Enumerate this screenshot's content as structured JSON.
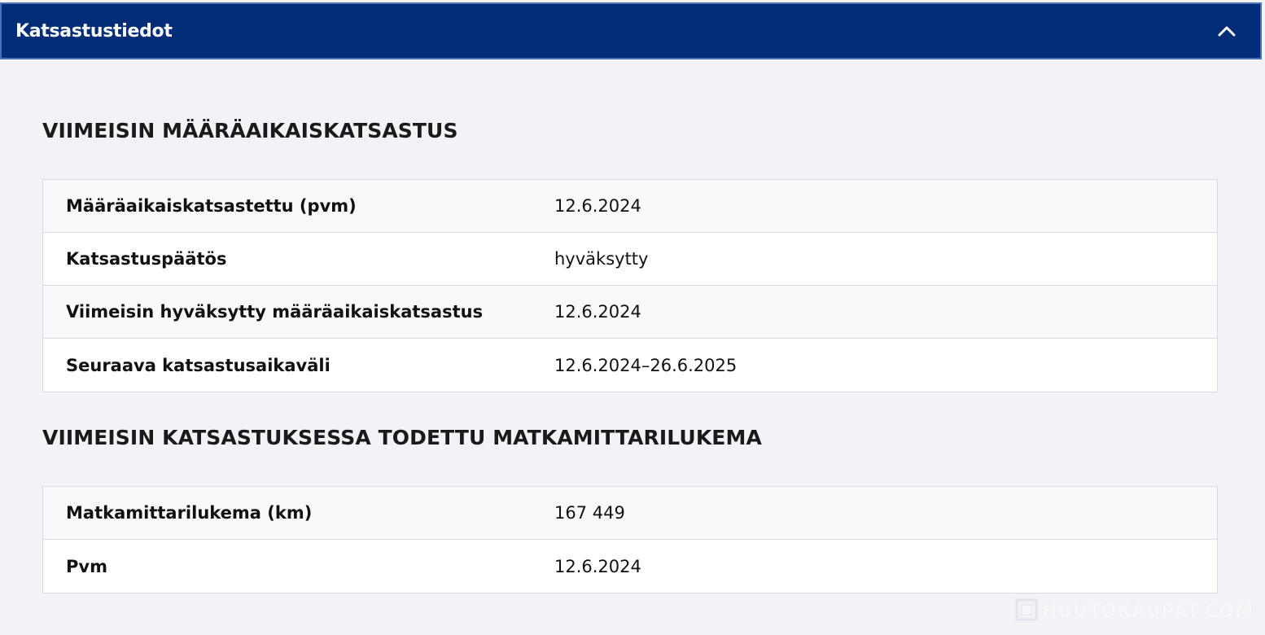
{
  "panel": {
    "title": "Katsastustiedot",
    "toggle_icon": "chevron-up-icon"
  },
  "sections": [
    {
      "heading": "VIIMEISIN MÄÄRÄAIKAISKATSASTUS",
      "rows": [
        {
          "label": "Määräaikaiskatsastettu (pvm)",
          "value": "12.6.2024"
        },
        {
          "label": "Katsastuspäätös",
          "value": "hyväksytty"
        },
        {
          "label": "Viimeisin hyväksytty määräaikaiskatsastus",
          "value": "12.6.2024"
        },
        {
          "label": "Seuraava katsastusaikaväli",
          "value": "12.6.2024–26.6.2025"
        }
      ]
    },
    {
      "heading": "VIIMEISIN KATSASTUKSESSA TODETTU MATKAMITTARILUKEMA",
      "rows": [
        {
          "label": "Matkamittarilukema (km)",
          "value": "167 449"
        },
        {
          "label": "Pvm",
          "value": "12.6.2024"
        }
      ]
    }
  ],
  "watermark": {
    "text": "HUUTOKAUPAT.COM"
  },
  "colors": {
    "header_bg": "#002c78",
    "page_bg": "#f1f3f7",
    "row_alt_bg": "#f8f9fb",
    "row_bg": "#ffffff",
    "border": "#d7dbe2"
  }
}
